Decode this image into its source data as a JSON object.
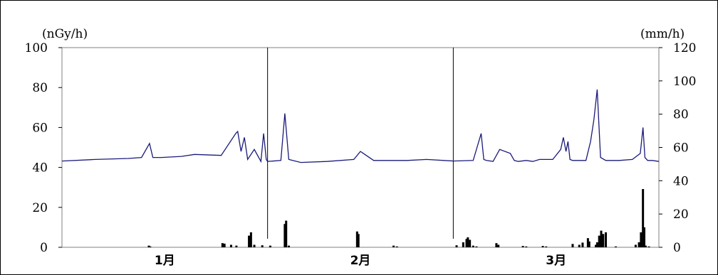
{
  "chart_data": {
    "type": "line",
    "left_unit": "(nGy/h)",
    "right_unit": "(mm/h)",
    "categories": [
      "1月",
      "2月",
      "3月"
    ],
    "left_axis": {
      "ylim": [
        0,
        100
      ],
      "ticks": [
        0,
        20,
        40,
        60,
        80,
        100
      ]
    },
    "right_axis": {
      "ylim": [
        0,
        120
      ],
      "ticks": [
        0,
        20,
        40,
        60,
        80,
        100,
        120
      ]
    },
    "x_range_days": [
      0,
      90
    ],
    "month_boundaries": [
      31,
      59
    ],
    "line_color": "#1a1a7a",
    "bar_color": "#000000",
    "series": [
      {
        "type": "line",
        "axis": "left",
        "x": [
          0,
          5,
          10,
          12,
          13.2,
          13.7,
          15,
          18,
          20,
          24,
          26.2,
          26.5,
          27,
          27.5,
          28,
          29,
          30,
          30.4,
          30.8,
          31,
          33,
          33.6,
          34.2,
          36,
          40,
          44,
          45,
          47,
          52,
          55,
          59,
          62,
          63.2,
          63.6,
          64,
          65,
          66,
          67.6,
          68.2,
          68.8,
          70,
          71,
          72,
          74,
          75.2,
          75.6,
          76,
          76.3,
          76.6,
          77,
          79,
          79.7,
          80.2,
          80.7,
          81.2,
          82,
          84,
          86,
          87.2,
          87.6,
          87.9,
          88.3,
          89,
          90
        ],
        "values": [
          43.2,
          44,
          44.5,
          45,
          52,
          45,
          45,
          45.5,
          46.5,
          46,
          57,
          58,
          48,
          55,
          44,
          49,
          43,
          57,
          44,
          43,
          43.5,
          67,
          44,
          42.5,
          43,
          44,
          48,
          43.5,
          43.5,
          44,
          43.2,
          43.5,
          57,
          44,
          43.5,
          43,
          49,
          47,
          43.5,
          43,
          43.5,
          43,
          44,
          44,
          49,
          55,
          48,
          53,
          44,
          43.5,
          43.5,
          53,
          64,
          79,
          45,
          43.5,
          43.5,
          44,
          47,
          60,
          45,
          43.5,
          43.5,
          43
        ]
      },
      {
        "type": "bar",
        "axis": "right",
        "x": [
          13.1,
          13.3,
          24.2,
          24.5,
          25.5,
          26.3,
          28.2,
          28.5,
          29,
          30.2,
          31.4,
          33.6,
          33.8,
          34.2,
          44.5,
          44.7,
          50,
          50.5,
          59.5,
          60.5,
          61,
          61.2,
          61.5,
          62,
          62.5,
          65.5,
          65.8,
          69.5,
          70,
          72.5,
          73,
          77,
          78,
          78.5,
          79.3,
          79.5,
          80.5,
          80.7,
          81,
          81.3,
          81.6,
          82,
          83.5,
          86.5,
          87,
          87.3,
          87.6,
          87.8,
          88,
          88.5
        ],
        "values": [
          1,
          0.5,
          2.5,
          2.2,
          1.5,
          1,
          7,
          9,
          1.5,
          1.2,
          1,
          14,
          16,
          1,
          9.5,
          8,
          1,
          0.5,
          1.2,
          3,
          5,
          6,
          4.5,
          1,
          0.5,
          2.5,
          1.5,
          0.8,
          0.5,
          0.8,
          0.5,
          2,
          1.5,
          2.8,
          5.5,
          3.5,
          1.5,
          3,
          7,
          10,
          8,
          9,
          0.5,
          1.5,
          3,
          9,
          35,
          12,
          1,
          0.5
        ]
      }
    ]
  }
}
